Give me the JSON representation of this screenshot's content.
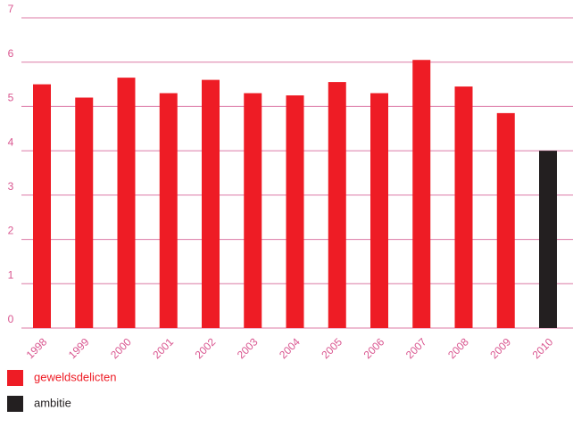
{
  "chart_data": {
    "type": "bar",
    "categories": [
      "1998",
      "1999",
      "2000",
      "2001",
      "2002",
      "2003",
      "2004",
      "2005",
      "2006",
      "2007",
      "2008",
      "2009",
      "2010"
    ],
    "series": [
      {
        "name": "geweldsdelicten",
        "color": "#ee1c25",
        "values": [
          5.5,
          5.2,
          5.65,
          5.3,
          5.6,
          5.3,
          5.25,
          5.55,
          5.3,
          6.05,
          5.45,
          4.85,
          null
        ]
      },
      {
        "name": "ambitie",
        "color": "#231f20",
        "values": [
          null,
          null,
          null,
          null,
          null,
          null,
          null,
          null,
          null,
          null,
          null,
          null,
          4.0
        ]
      }
    ],
    "ylim": [
      0,
      7
    ],
    "yticks": [
      0,
      1,
      2,
      3,
      4,
      5,
      6,
      7
    ],
    "grid": true
  }
}
